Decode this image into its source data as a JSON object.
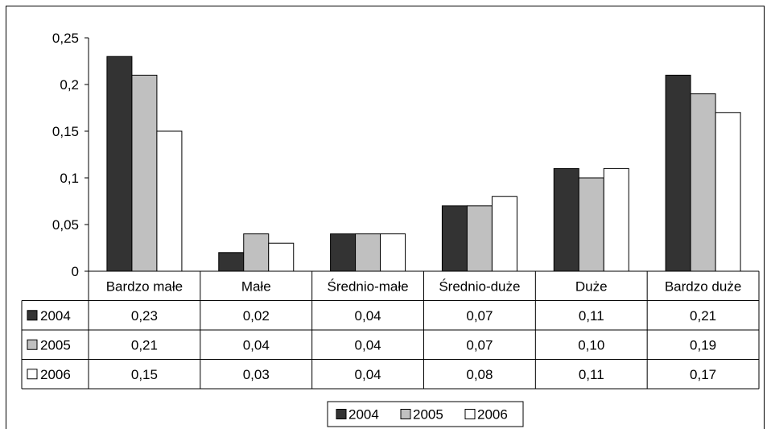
{
  "chart_data": {
    "type": "bar",
    "categories": [
      "Bardzo małe",
      "Małe",
      "Średnio-małe",
      "Średnio-duże",
      "Duże",
      "Bardzo duże"
    ],
    "series": [
      {
        "name": "2004",
        "values": [
          0.23,
          0.02,
          0.04,
          0.07,
          0.11,
          0.21
        ],
        "color": "#333333"
      },
      {
        "name": "2005",
        "values": [
          0.21,
          0.04,
          0.04,
          0.07,
          0.1,
          0.19
        ],
        "color": "#c0c0c0"
      },
      {
        "name": "2006",
        "values": [
          0.15,
          0.03,
          0.04,
          0.08,
          0.11,
          0.17
        ],
        "color": "#ffffff"
      }
    ],
    "table": [
      [
        "0,23",
        "0,02",
        "0,04",
        "0,07",
        "0,11",
        "0,21"
      ],
      [
        "0,21",
        "0,04",
        "0,04",
        "0,07",
        "0,10",
        "0,19"
      ],
      [
        "0,15",
        "0,03",
        "0,04",
        "0,08",
        "0,11",
        "0,17"
      ]
    ],
    "yticks": [
      "0",
      "0,05",
      "0,1",
      "0,15",
      "0,2",
      "0,25"
    ],
    "ytick_values": [
      0,
      0.05,
      0.1,
      0.15,
      0.2,
      0.25
    ],
    "ylim": [
      0,
      0.25
    ],
    "grid": false,
    "legend_position": "bottom",
    "legend": [
      "2004",
      "2005",
      "2006"
    ]
  }
}
